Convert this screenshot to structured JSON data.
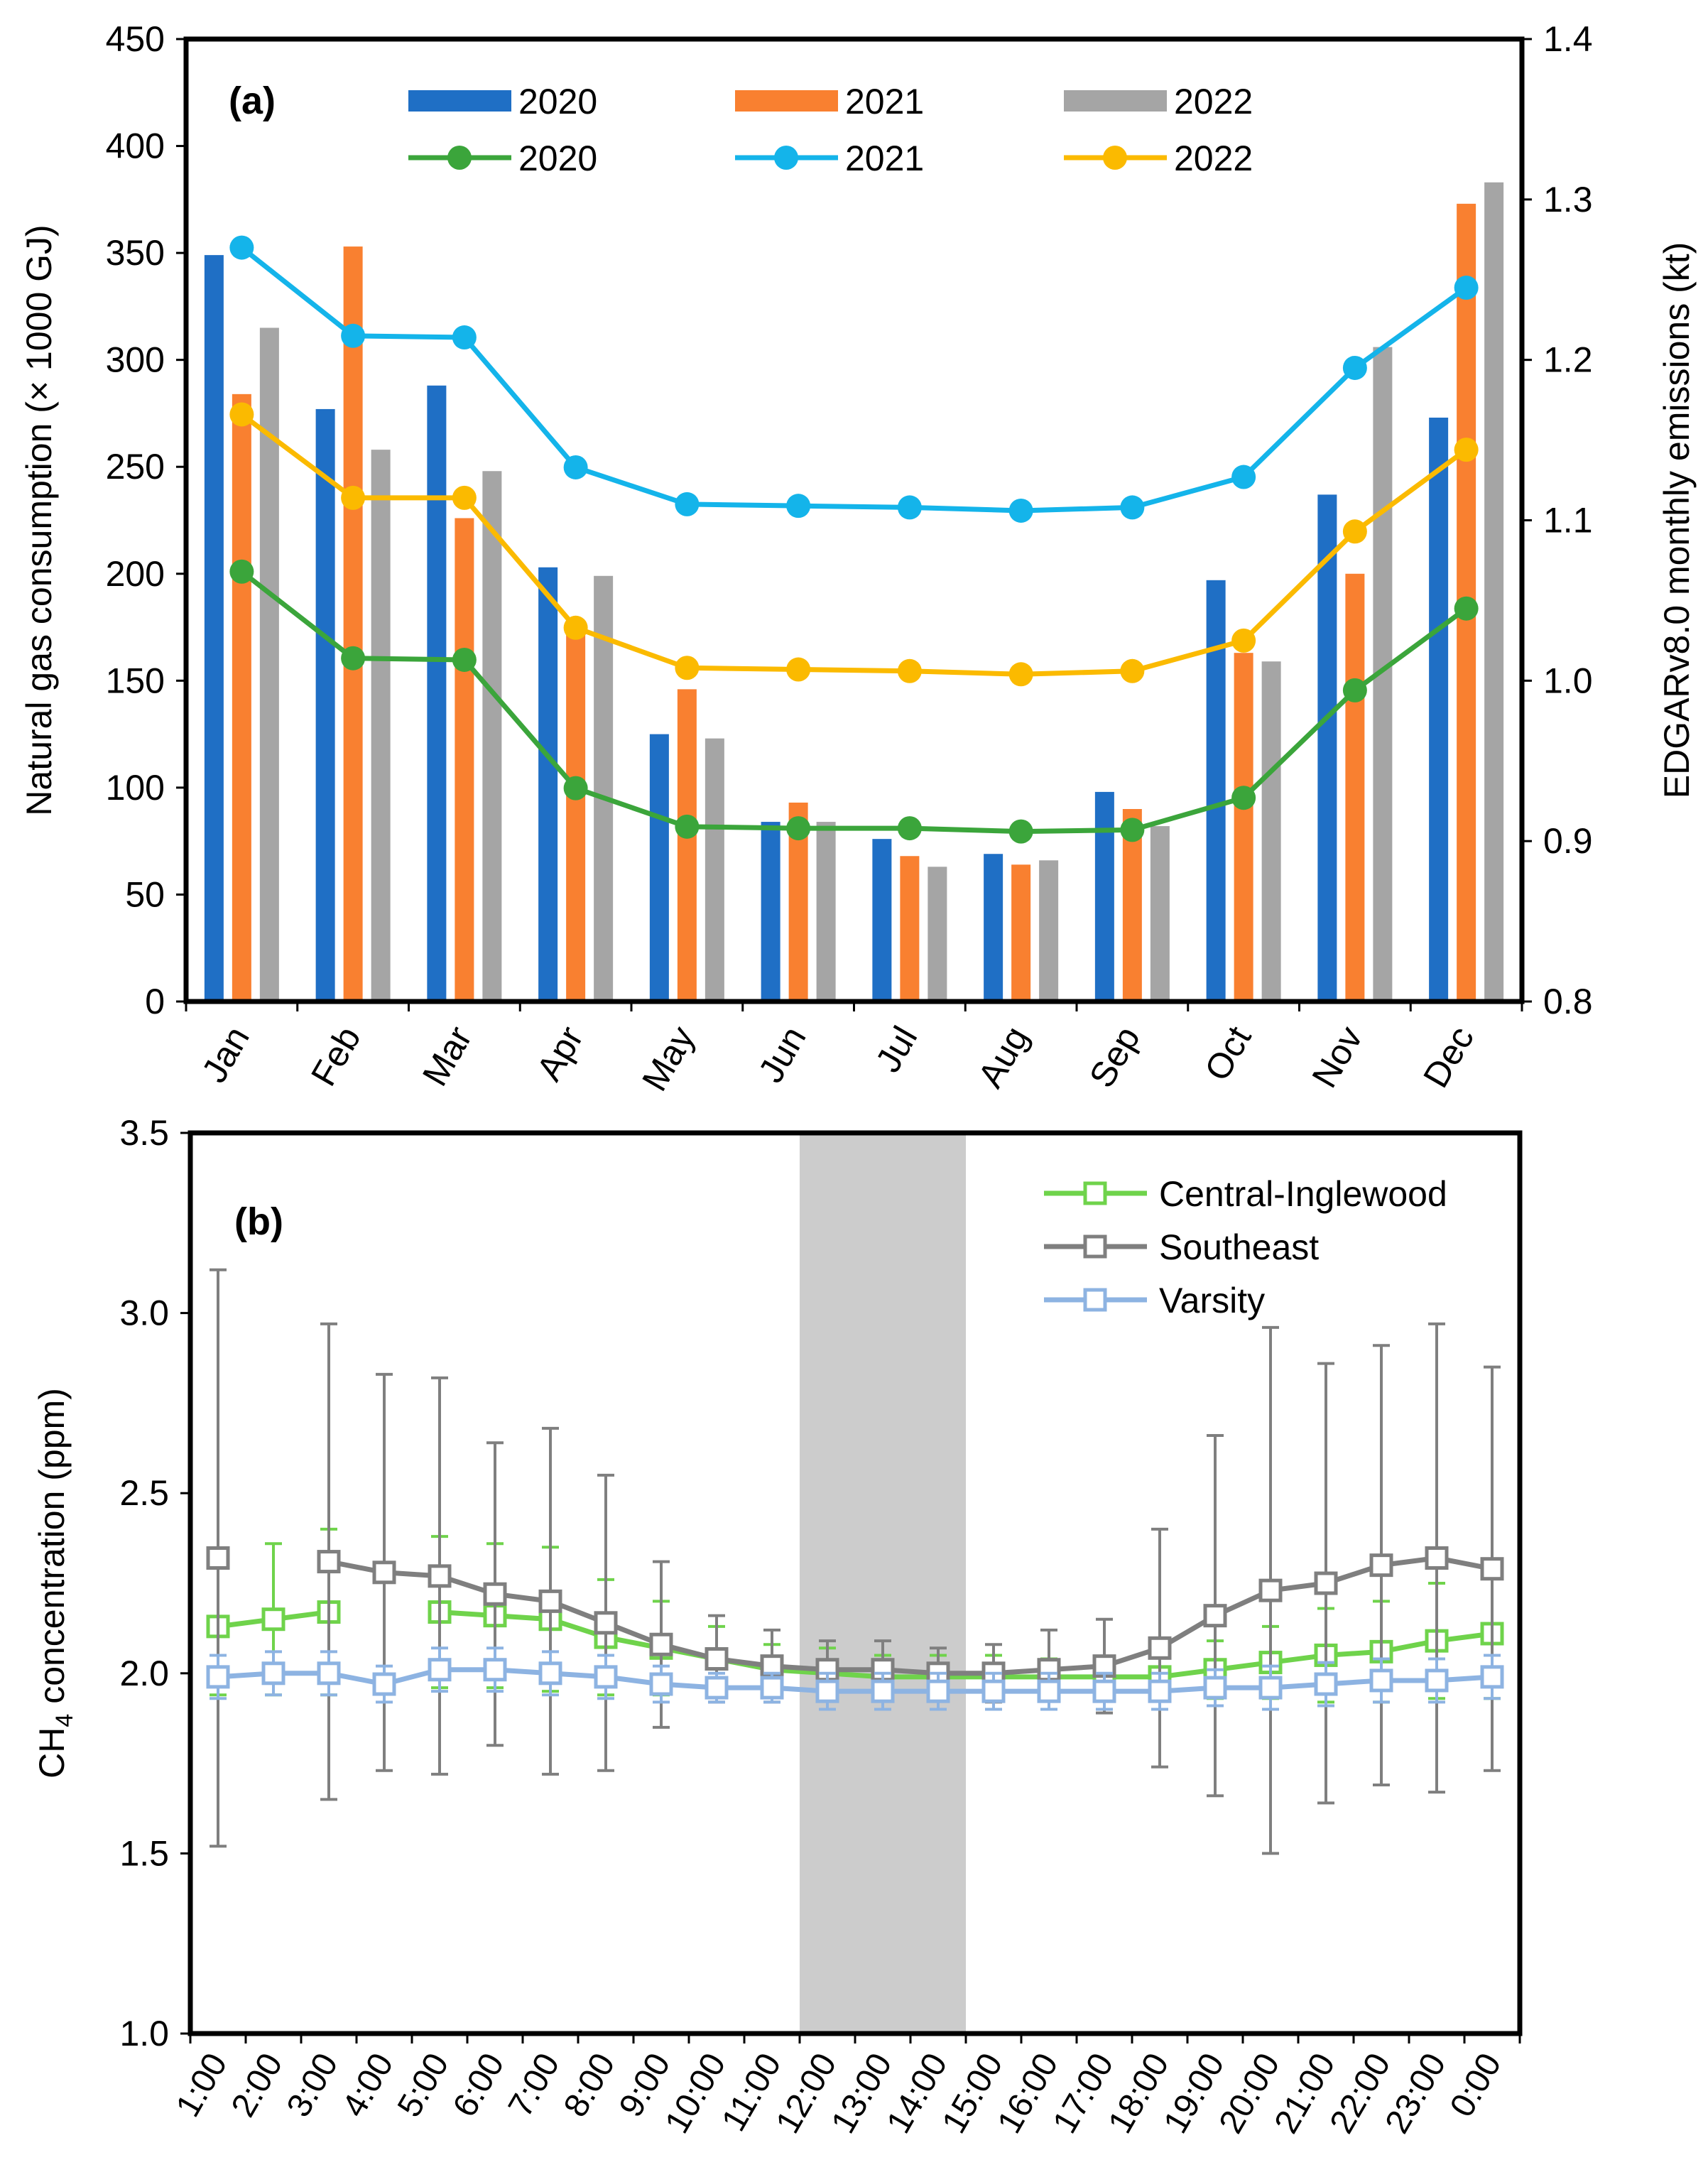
{
  "chart_data": [
    {
      "panel_label": "(a)",
      "type": "bar+line",
      "categories": [
        "Jan",
        "Feb",
        "Mar",
        "Apr",
        "May",
        "Jun",
        "Jul",
        "Aug",
        "Sep",
        "Oct",
        "Nov",
        "Dec"
      ],
      "ylabel": "Natural gas consumption (× 1000 GJ)",
      "y2label": "EDGARv8.0  monthly emissions (kt)",
      "ylim": [
        0,
        450
      ],
      "y2lim": [
        0.8,
        1.4
      ],
      "yticks": [
        "0",
        "50",
        "100",
        "150",
        "200",
        "250",
        "300",
        "350",
        "400",
        "450"
      ],
      "y2ticks": [
        "0.8",
        "0.9",
        "1.0",
        "1.1",
        "1.2",
        "1.3",
        "1.4"
      ],
      "bar_series": [
        {
          "name": "2020",
          "color": "#1F6FC5",
          "values": [
            349,
            277,
            288,
            203,
            125,
            84,
            76,
            69,
            98,
            197,
            237,
            273
          ]
        },
        {
          "name": "2021",
          "color": "#F98030",
          "values": [
            284,
            353,
            226,
            172,
            146,
            93,
            68,
            64,
            90,
            163,
            200,
            373
          ]
        },
        {
          "name": "2022",
          "color": "#A5A5A5",
          "values": [
            315,
            258,
            248,
            199,
            123,
            84,
            63,
            66,
            82,
            159,
            306,
            383
          ]
        }
      ],
      "line_series": [
        {
          "name": "2020",
          "color": "#3BA53B",
          "values": [
            1.068,
            1.014,
            1.013,
            0.933,
            0.909,
            0.908,
            0.908,
            0.906,
            0.907,
            0.927,
            0.994,
            1.045
          ]
        },
        {
          "name": "2021",
          "color": "#14B4EA",
          "values": [
            1.27,
            1.215,
            1.214,
            1.133,
            1.11,
            1.109,
            1.108,
            1.106,
            1.108,
            1.127,
            1.195,
            1.245
          ]
        },
        {
          "name": "2022",
          "color": "#FBBA00",
          "values": [
            1.166,
            1.114,
            1.114,
            1.033,
            1.008,
            1.007,
            1.006,
            1.004,
            1.006,
            1.025,
            1.093,
            1.144
          ]
        }
      ]
    },
    {
      "panel_label": "(b)",
      "type": "line",
      "categories": [
        "1:00",
        "2:00",
        "3:00",
        "4:00",
        "5:00",
        "6:00",
        "7:00",
        "8:00",
        "9:00",
        "10:00",
        "11:00",
        "12:00",
        "13:00",
        "14:00",
        "15:00",
        "16:00",
        "17:00",
        "18:00",
        "19:00",
        "20:00",
        "21:00",
        "22:00",
        "23:00",
        "0:00"
      ],
      "ylabel_main": "CH",
      "ylabel_sub": "4",
      "ylabel_rest": " concentration (ppm)",
      "ylim": [
        1.0,
        3.5
      ],
      "yticks": [
        "1.0",
        "1.5",
        "2.0",
        "2.5",
        "3.0",
        "3.5"
      ],
      "shaded_hours": [
        12,
        15
      ],
      "series": [
        {
          "name": "Central-Inglewood",
          "color": "#6FD34B",
          "values": [
            2.13,
            2.15,
            2.17,
            null,
            2.17,
            2.16,
            2.15,
            2.1,
            2.07,
            2.04,
            2.01,
            2.0,
            1.99,
            1.99,
            1.99,
            1.99,
            1.99,
            1.99,
            2.01,
            2.03,
            2.05,
            2.06,
            2.09,
            2.11
          ],
          "err": [
            0.19,
            0.21,
            0.23,
            null,
            0.21,
            0.2,
            0.2,
            0.16,
            0.13,
            0.09,
            0.07,
            0.07,
            0.06,
            0.06,
            0.06,
            0.05,
            0.05,
            0.06,
            0.08,
            0.1,
            0.13,
            0.14,
            0.16,
            0.18
          ]
        },
        {
          "name": "Southeast",
          "color": "#7F7F7F",
          "values": [
            2.32,
            null,
            2.31,
            2.28,
            2.27,
            2.22,
            2.2,
            2.14,
            2.08,
            2.04,
            2.02,
            2.01,
            2.01,
            2.0,
            2.0,
            2.01,
            2.02,
            2.07,
            2.16,
            2.23,
            2.25,
            2.3,
            2.32,
            2.29
          ],
          "err": [
            0.8,
            null,
            0.66,
            0.55,
            0.55,
            0.42,
            0.48,
            0.41,
            0.23,
            0.12,
            0.1,
            0.08,
            0.08,
            0.07,
            0.08,
            0.11,
            0.13,
            0.33,
            0.5,
            0.73,
            0.61,
            0.61,
            0.65,
            0.56
          ]
        },
        {
          "name": "Varsity",
          "color": "#8DB3E2",
          "values": [
            1.99,
            2.0,
            2.0,
            1.97,
            2.01,
            2.01,
            2.0,
            1.99,
            1.97,
            1.96,
            1.96,
            1.95,
            1.95,
            1.95,
            1.95,
            1.95,
            1.95,
            1.95,
            1.96,
            1.96,
            1.97,
            1.98,
            1.98,
            1.99
          ],
          "err": [
            0.06,
            0.06,
            0.06,
            0.05,
            0.06,
            0.06,
            0.06,
            0.06,
            0.05,
            0.04,
            0.04,
            0.05,
            0.05,
            0.05,
            0.05,
            0.05,
            0.05,
            0.05,
            0.05,
            0.06,
            0.06,
            0.06,
            0.06,
            0.06
          ]
        }
      ]
    }
  ]
}
